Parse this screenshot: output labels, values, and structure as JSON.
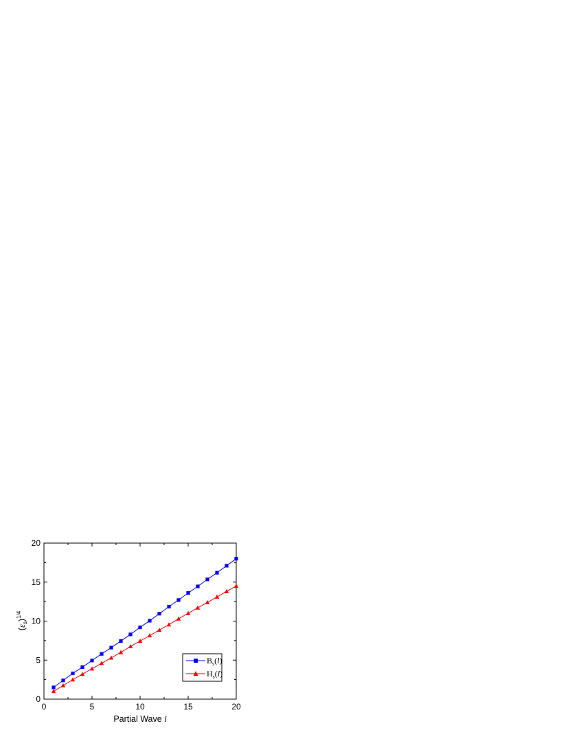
{
  "chart_data": {
    "type": "line",
    "xlabel": {
      "text": "Partial Wave ",
      "var": "l"
    },
    "ylabel": {
      "open": "(",
      "symbol": "ε",
      "sub": "s",
      "close": ")",
      "sup": "1/4"
    },
    "xlim": [
      0,
      20
    ],
    "ylim": [
      0,
      20
    ],
    "xticks": [
      0,
      5,
      10,
      15,
      20
    ],
    "yticks": [
      0,
      5,
      10,
      15,
      20
    ],
    "grid": false,
    "legend": "lower-right",
    "x": [
      1,
      2,
      3,
      4,
      5,
      6,
      7,
      8,
      9,
      10,
      11,
      12,
      13,
      14,
      15,
      16,
      17,
      18,
      19,
      20
    ],
    "series": [
      {
        "name": "B_s(l)",
        "label": {
          "main": "B",
          "sub": "s",
          "arg": "l"
        },
        "marker": "square",
        "color": "#0000ff",
        "values": [
          1.5,
          2.4,
          3.3,
          4.1,
          4.95,
          5.8,
          6.6,
          7.45,
          8.3,
          9.2,
          10.05,
          10.95,
          11.85,
          12.7,
          13.6,
          14.45,
          15.35,
          16.2,
          17.1,
          18.0
        ]
      },
      {
        "name": "H_s(l)",
        "label": {
          "main": "H",
          "sub": "s",
          "arg": "l"
        },
        "marker": "triangle",
        "color": "#ff0000",
        "values": [
          1.0,
          1.75,
          2.5,
          3.2,
          3.9,
          4.6,
          5.3,
          6.0,
          6.75,
          7.45,
          8.15,
          8.85,
          9.55,
          10.3,
          11.0,
          11.7,
          12.4,
          13.1,
          13.8,
          14.5
        ]
      }
    ]
  }
}
